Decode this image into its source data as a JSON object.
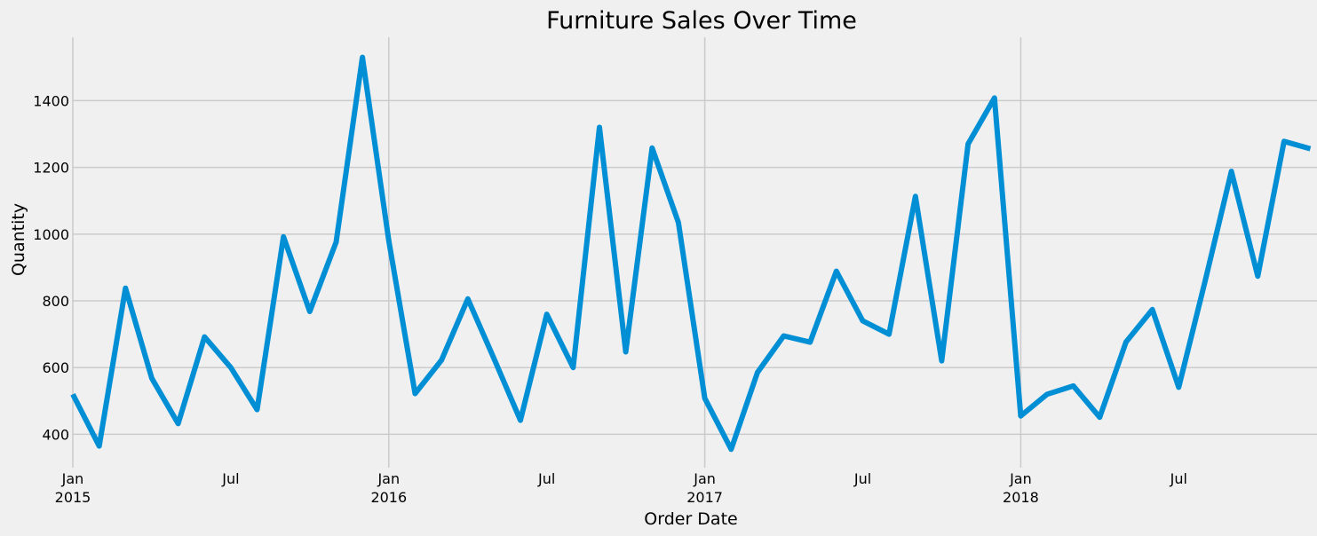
{
  "chart_data": {
    "type": "line",
    "title": "Furniture Sales Over Time",
    "xlabel": "Order Date",
    "ylabel": "Quantity",
    "x_axis": "monthly dates",
    "ylim": [
      300,
      1590
    ],
    "y_ticks": [
      400,
      600,
      800,
      1000,
      1200,
      1400
    ],
    "x_ticks": [
      {
        "date": "2015-01",
        "line1": "Jan",
        "line2": "2015"
      },
      {
        "date": "2015-07",
        "line1": "Jul",
        "line2": ""
      },
      {
        "date": "2016-01",
        "line1": "Jan",
        "line2": "2016"
      },
      {
        "date": "2016-07",
        "line1": "Jul",
        "line2": ""
      },
      {
        "date": "2017-01",
        "line1": "Jan",
        "line2": "2017"
      },
      {
        "date": "2017-07",
        "line1": "Jul",
        "line2": ""
      },
      {
        "date": "2018-01",
        "line1": "Jan",
        "line2": "2018"
      },
      {
        "date": "2018-07",
        "line1": "Jul",
        "line2": ""
      }
    ],
    "grid": true,
    "series": [
      {
        "color": "#008fd5",
        "x": [
          "2015-01",
          "2015-02",
          "2015-03",
          "2015-04",
          "2015-05",
          "2015-06",
          "2015-07",
          "2015-08",
          "2015-09",
          "2015-10",
          "2015-11",
          "2015-12",
          "2016-01",
          "2016-02",
          "2016-03",
          "2016-04",
          "2016-05",
          "2016-06",
          "2016-07",
          "2016-08",
          "2016-09",
          "2016-10",
          "2016-11",
          "2016-12",
          "2017-01",
          "2017-02",
          "2017-03",
          "2017-04",
          "2017-05",
          "2017-06",
          "2017-07",
          "2017-08",
          "2017-09",
          "2017-10",
          "2017-11",
          "2017-12",
          "2018-01",
          "2018-02",
          "2018-03",
          "2018-04",
          "2018-05",
          "2018-06",
          "2018-07",
          "2018-08",
          "2018-09",
          "2018-10",
          "2018-11",
          "2018-12"
        ],
        "values": [
          520,
          365,
          838,
          568,
          432,
          692,
          600,
          474,
          992,
          768,
          976,
          1530,
          980,
          522,
          622,
          806,
          626,
          442,
          760,
          600,
          1320,
          647,
          1258,
          1035,
          508,
          355,
          585,
          695,
          676,
          889,
          740,
          700,
          1113,
          620,
          1270,
          1408,
          455,
          520,
          545,
          451,
          677,
          774,
          541,
          859,
          1188,
          874,
          1278,
          1256
        ]
      }
    ]
  }
}
